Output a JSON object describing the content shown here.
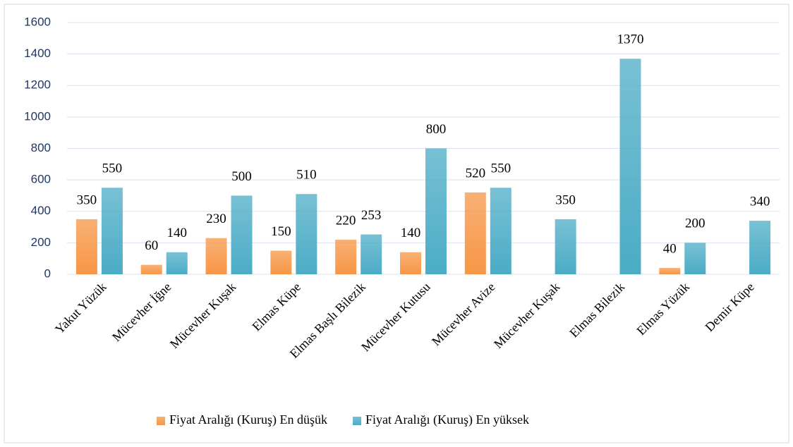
{
  "chart_data": {
    "type": "bar",
    "categories": [
      "Yakut Yüzük",
      "Mücevher İğne",
      "Mücevher Kuşak",
      "Elmas Küpe",
      "Elmas Başlı Bilezik",
      "Mücevher Kutusu",
      "Mücevher Avize",
      "Mücevher Kuşak",
      "Elmas Bilezik",
      "Elmas Yüzük",
      "Demir Küpe"
    ],
    "series": [
      {
        "name": "Fiyat Aralığı (Kuruş) En düşük",
        "color": "#f79646",
        "values": [
          350,
          60,
          230,
          150,
          220,
          140,
          520,
          null,
          null,
          40,
          null
        ]
      },
      {
        "name": "Fiyat Aralığı (Kuruş) En yüksek",
        "color": "#4bacc6",
        "values": [
          550,
          140,
          500,
          510,
          253,
          800,
          550,
          350,
          1370,
          200,
          340
        ]
      }
    ],
    "ylim": [
      0,
      1600
    ],
    "yticks": [
      0,
      200,
      400,
      600,
      800,
      1000,
      1200,
      1400,
      1600
    ],
    "grid": true,
    "legend": "bottom"
  }
}
